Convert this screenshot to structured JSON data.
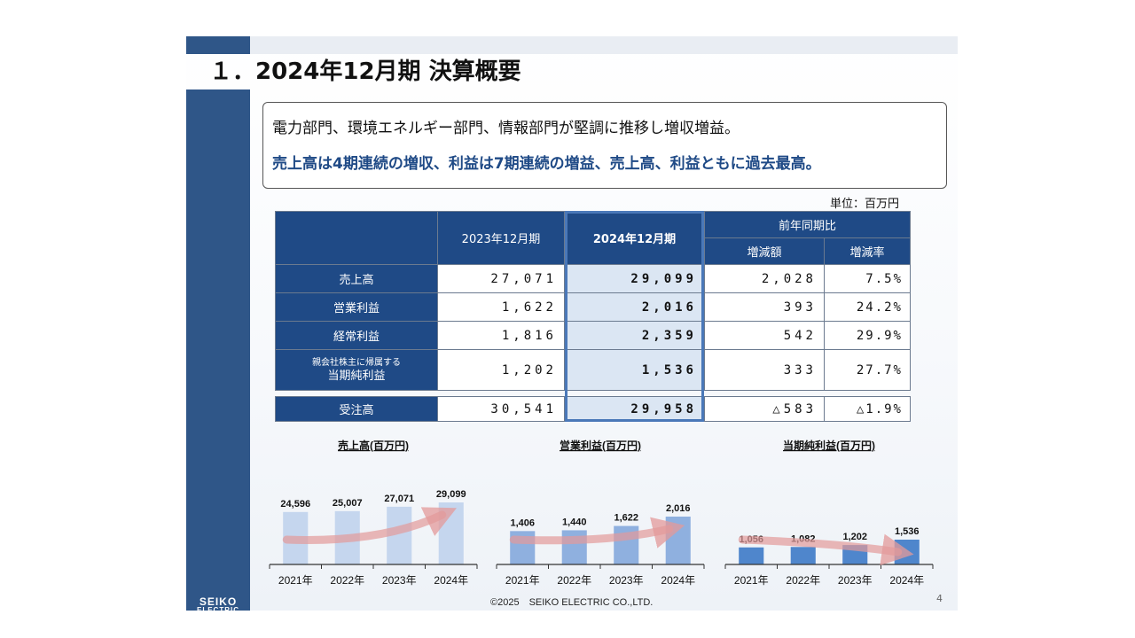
{
  "slide": {
    "title": "１．2024年12月期 決算概要",
    "summary_line1": "電力部門、環境エネルギー部門、情報部門が堅調に推移し増収増益。",
    "summary_line2": "売上高は4期連続の増収、利益は7期連続の増益、売上高、利益ともに過去最高。",
    "unit": "単位：百万円",
    "footer": "©2025　SEIKO ELECTRIC CO.,LTD.",
    "page_number": "4",
    "logo_line1": "SEIKO",
    "logo_line2": "ELECTRIC"
  },
  "table": {
    "col_prev": "2023年12月期",
    "col_curr": "2024年12月期",
    "col_yoy": "前年同期比",
    "col_diff": "増減額",
    "col_rate": "増減率",
    "rows": [
      {
        "label": "売上高",
        "label_small": "",
        "prev": "27,071",
        "curr": "29,099",
        "diff": "2,028",
        "rate": "7.5%"
      },
      {
        "label": "営業利益",
        "label_small": "",
        "prev": "1,622",
        "curr": "2,016",
        "diff": "393",
        "rate": "24.2%"
      },
      {
        "label": "経常利益",
        "label_small": "",
        "prev": "1,816",
        "curr": "2,359",
        "diff": "542",
        "rate": "29.9%"
      },
      {
        "label": "当期純利益",
        "label_small": "親会社株主に帰属する",
        "prev": "1,202",
        "curr": "1,536",
        "diff": "333",
        "rate": "27.7%"
      }
    ],
    "orders": {
      "label": "受注高",
      "prev": "30,541",
      "curr": "29,958",
      "diff": "△583",
      "rate": "△1.9%"
    }
  },
  "colors": {
    "navy": "#1f4a86",
    "bar_sales": "#c5d6ee",
    "bar_op": "#8fb0df",
    "bar_net": "#4f86cc",
    "arrow": "#e39a9a"
  },
  "chart_data": [
    {
      "type": "bar",
      "title": "売上高(百万円)",
      "categories": [
        "2021年",
        "2022年",
        "2023年",
        "2024年"
      ],
      "values": [
        24596,
        25007,
        27071,
        29099
      ],
      "labels": [
        "24,596",
        "25,007",
        "27,071",
        "29,099"
      ],
      "color": "#c5d6ee",
      "ylim": [
        0,
        29099
      ]
    },
    {
      "type": "bar",
      "title": "営業利益(百万円)",
      "categories": [
        "2021年",
        "2022年",
        "2023年",
        "2024年"
      ],
      "values": [
        1406,
        1440,
        1622,
        2016
      ],
      "labels": [
        "1,406",
        "1,440",
        "1,622",
        "2,016"
      ],
      "color": "#8fb0df",
      "ylim": [
        0,
        2016
      ]
    },
    {
      "type": "bar",
      "title": "当期純利益(百万円)",
      "categories": [
        "2021年",
        "2022年",
        "2023年",
        "2024年"
      ],
      "values": [
        1056,
        1082,
        1202,
        1536
      ],
      "labels": [
        "1,056",
        "1,082",
        "1,202",
        "1,536"
      ],
      "color": "#4f86cc",
      "ylim": [
        0,
        1536
      ]
    }
  ]
}
